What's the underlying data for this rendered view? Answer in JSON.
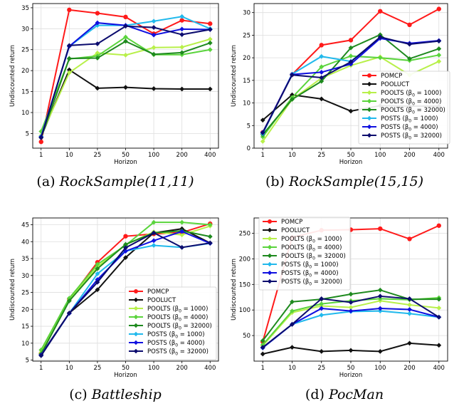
{
  "figure": {
    "captions": [
      {
        "letter": "(a)",
        "name": "RockSample(11,11)"
      },
      {
        "letter": "(b)",
        "name": "RockSample(15,15)"
      },
      {
        "letter": "(c)",
        "name": "Battleship"
      },
      {
        "letter": "(d)",
        "name": "PocMan"
      }
    ]
  },
  "chart_data": [
    {
      "type": "line",
      "categories": [
        "1",
        "10",
        "25",
        "50",
        "100",
        "200",
        "400"
      ],
      "xlabel": "Horizon",
      "ylabel": "Undiscounted return",
      "ylim": [
        1.5,
        36
      ],
      "yticks": [
        5,
        10,
        15,
        20,
        25,
        30,
        35
      ],
      "grid": true,
      "legend": null,
      "series": [
        {
          "name": "POMCP",
          "color": "#ff1a1a",
          "values": [
            3.0,
            34.5,
            33.7,
            32.8,
            28.8,
            32.0,
            31.2
          ]
        },
        {
          "name": "POOLUCT",
          "color": "#111111",
          "values": [
            4.2,
            20.2,
            15.8,
            16.0,
            15.7,
            15.6,
            15.6
          ]
        },
        {
          "name": "POOLTS (β0 = 1000)",
          "color": "#b8f04a",
          "values": [
            4.5,
            19.5,
            24.2,
            23.7,
            25.5,
            25.6,
            27.5
          ]
        },
        {
          "name": "POOLTS (β0 = 4000)",
          "color": "#5ad43c",
          "values": [
            5.5,
            22.8,
            23.5,
            28.0,
            23.8,
            23.8,
            25.0
          ]
        },
        {
          "name": "POOLTS (β0 = 32000)",
          "color": "#1e8a1e",
          "values": [
            4.0,
            22.9,
            23.0,
            27.0,
            23.9,
            24.3,
            26.6
          ]
        },
        {
          "name": "POSTS (β0 = 1000)",
          "color": "#21b9ec",
          "values": [
            4.3,
            25.8,
            30.8,
            30.8,
            31.8,
            32.9,
            30.0
          ]
        },
        {
          "name": "POSTS (β0 = 4000)",
          "color": "#1010e0",
          "values": [
            4.2,
            25.8,
            31.4,
            30.8,
            28.5,
            29.9,
            29.8
          ]
        },
        {
          "name": "POSTS (β0 = 32000)",
          "color": "#0c0c6e",
          "values": [
            4.0,
            26.0,
            26.4,
            30.6,
            30.3,
            28.6,
            29.8
          ]
        }
      ]
    },
    {
      "type": "line",
      "categories": [
        "1",
        "10",
        "25",
        "50",
        "100",
        "200",
        "400"
      ],
      "xlabel": "Horizon",
      "ylabel": "Undiscounted return",
      "ylim": [
        0,
        32
      ],
      "yticks": [
        0,
        5,
        10,
        15,
        20,
        25,
        30
      ],
      "grid": true,
      "legend": "right",
      "series": [
        {
          "name": "POMCP",
          "color": "#ff1a1a",
          "values": [
            3.5,
            16.3,
            22.8,
            23.9,
            30.3,
            27.3,
            30.8
          ]
        },
        {
          "name": "POOLUCT",
          "color": "#111111",
          "values": [
            6.2,
            11.8,
            10.9,
            8.2,
            9.4,
            9.3,
            9.3
          ]
        },
        {
          "name": "POOLTS (β0 = 1000)",
          "color": "#b8f04a",
          "values": [
            1.5,
            10.8,
            15.5,
            18.3,
            20.2,
            16.2,
            19.2
          ]
        },
        {
          "name": "POOLTS (β0 = 4000)",
          "color": "#5ad43c",
          "values": [
            2.5,
            11.2,
            18.0,
            20.4,
            20.0,
            19.4,
            20.6
          ]
        },
        {
          "name": "POOLTS (β0 = 32000)",
          "color": "#1e8a1e",
          "values": [
            3.0,
            10.8,
            14.8,
            22.2,
            25.1,
            19.8,
            22.0
          ]
        },
        {
          "name": "POSTS (β0 = 1000)",
          "color": "#21b9ec",
          "values": [
            3.2,
            16.4,
            20.3,
            19.2,
            24.4,
            23.1,
            23.7
          ]
        },
        {
          "name": "POSTS (β0 = 4000)",
          "color": "#1010e0",
          "values": [
            3.5,
            16.3,
            16.8,
            18.6,
            24.3,
            23.2,
            23.8
          ]
        },
        {
          "name": "POSTS (β0 = 32000)",
          "color": "#0c0c6e",
          "values": [
            3.4,
            16.2,
            15.6,
            19.1,
            24.6,
            23.0,
            23.7
          ]
        }
      ]
    },
    {
      "type": "line",
      "categories": [
        "1",
        "10",
        "25",
        "50",
        "100",
        "200",
        "400"
      ],
      "xlabel": "Horizon",
      "ylabel": "Undiscounted return",
      "ylim": [
        4.7,
        47
      ],
      "yticks": [
        5,
        10,
        15,
        20,
        25,
        30,
        35,
        40,
        45
      ],
      "grid": true,
      "legend": "lower right",
      "series": [
        {
          "name": "POMCP",
          "color": "#ff1a1a",
          "values": [
            7.0,
            22.9,
            33.9,
            41.6,
            42.3,
            42.7,
            45.3
          ]
        },
        {
          "name": "POOLUCT",
          "color": "#111111",
          "values": [
            6.6,
            18.9,
            25.8,
            35.3,
            42.6,
            43.8,
            39.6
          ]
        },
        {
          "name": "POOLTS (β0 = 1000)",
          "color": "#b8f04a",
          "values": [
            7.2,
            22.8,
            32.6,
            39.1,
            42.9,
            42.0,
            44.6
          ]
        },
        {
          "name": "POOLTS (β0 = 4000)",
          "color": "#5ad43c",
          "values": [
            8.0,
            23.3,
            33.3,
            38.9,
            45.7,
            45.7,
            45.0
          ]
        },
        {
          "name": "POOLTS (β0 = 32000)",
          "color": "#1e8a1e",
          "values": [
            6.8,
            22.5,
            32.0,
            39.2,
            42.6,
            43.2,
            41.5
          ]
        },
        {
          "name": "POSTS (β0 = 1000)",
          "color": "#21b9ec",
          "values": [
            6.4,
            18.8,
            30.5,
            37.2,
            38.9,
            38.3,
            39.5
          ]
        },
        {
          "name": "POSTS (β0 = 4000)",
          "color": "#1010e0",
          "values": [
            6.5,
            18.8,
            28.8,
            37.2,
            40.3,
            43.0,
            39.5
          ]
        },
        {
          "name": "POSTS (β0 = 32000)",
          "color": "#0c0c6e",
          "values": [
            6.3,
            18.9,
            28.0,
            38.2,
            42.6,
            38.3,
            39.6
          ]
        }
      ]
    },
    {
      "type": "line",
      "categories": [
        "1",
        "10",
        "25",
        "50",
        "100",
        "200",
        "400"
      ],
      "xlabel": "Horizon",
      "ylabel": "Undiscounted return",
      "ylim": [
        0,
        280
      ],
      "yticks": [
        50,
        100,
        150,
        200,
        250
      ],
      "grid": true,
      "legend": "upper left",
      "series": [
        {
          "name": "POMCP",
          "color": "#ff1a1a",
          "values": [
            38,
            242,
            256,
            257,
            259,
            239,
            265
          ]
        },
        {
          "name": "POOLUCT",
          "color": "#111111",
          "values": [
            14,
            27,
            19,
            21,
            19,
            35,
            31
          ]
        },
        {
          "name": "POOLTS (β0 = 1000)",
          "color": "#b8f04a",
          "values": [
            30,
            95,
            108,
            105,
            118,
            110,
            104
          ]
        },
        {
          "name": "POOLTS (β0 = 4000)",
          "color": "#5ad43c",
          "values": [
            32,
            98,
            112,
            118,
            122,
            120,
            124
          ]
        },
        {
          "name": "POOLTS (β0 = 32000)",
          "color": "#1e8a1e",
          "values": [
            40,
            116,
            121,
            131,
            139,
            121,
            121
          ]
        },
        {
          "name": "POSTS (β0 = 1000)",
          "color": "#21b9ec",
          "values": [
            26,
            72,
            90,
            97,
            98,
            93,
            86
          ]
        },
        {
          "name": "POSTS (β0 = 4000)",
          "color": "#1010e0",
          "values": [
            26,
            72,
            103,
            98,
            103,
            101,
            86
          ]
        },
        {
          "name": "POSTS (β0 = 32000)",
          "color": "#0c0c6e",
          "values": [
            27,
            72,
            122,
            115,
            127,
            122,
            86
          ]
        }
      ]
    }
  ]
}
